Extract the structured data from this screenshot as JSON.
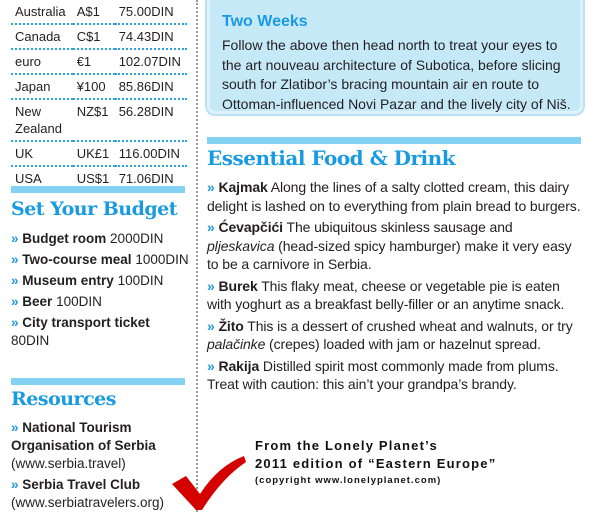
{
  "exchange_rates": [
    {
      "country": "Australia",
      "unit": "A$1",
      "rate": "75.00DIN"
    },
    {
      "country": "Canada",
      "unit": "C$1",
      "rate": "74.43DIN"
    },
    {
      "country": "euro",
      "unit": "€1",
      "rate": "102.07DIN"
    },
    {
      "country": "Japan",
      "unit": "¥100",
      "rate": "85.86DIN"
    },
    {
      "country": "New Zealand",
      "unit": "NZ$1",
      "rate": "56.28DIN"
    },
    {
      "country": "UK",
      "unit": "UK£1",
      "rate": "116.00DIN"
    },
    {
      "country": "USA",
      "unit": "US$1",
      "rate": "71.06DIN"
    }
  ],
  "budget": {
    "title": "Set Your Budget",
    "items": [
      {
        "label": "Budget room",
        "value": "2000DIN"
      },
      {
        "label": "Two-course meal",
        "value": "1000DIN"
      },
      {
        "label": "Museum entry",
        "value": "100DIN"
      },
      {
        "label": "Beer",
        "value": "100DIN"
      },
      {
        "label": "City transport ticket",
        "value": "80DIN"
      }
    ]
  },
  "resources": {
    "title": "Resources",
    "items": [
      {
        "label": "National Tourism Organisation of Serbia",
        "url": "(www.serbia.travel)"
      },
      {
        "label": "Serbia Travel Club",
        "url": "(www.serbiatravelers.org)"
      }
    ]
  },
  "two_weeks": {
    "title": "Two Weeks",
    "body": "Follow the above then head north to treat your eyes to the art nouveau architecture of Subotica, before slicing south for Zlatibor’s bracing mountain air en route to Ottoman-influenced Novi Pazar and the lively city of Niš."
  },
  "food": {
    "title": "Essential Food & Drink",
    "items": [
      {
        "name": "Kajmak",
        "pre": " Along the lines of a salty clotted cream, this dairy delight is lashed on to everything from plain bread to burgers.",
        "italic": "",
        "post": ""
      },
      {
        "name": "Ćevapčići",
        "pre": " The ubiquitous skinless sausage and ",
        "italic": "pljeskavica",
        "post": " (head-sized spicy hamburger) make it very easy to be a carnivore in Serbia."
      },
      {
        "name": "Burek",
        "pre": " This flaky meat, cheese or vegetable pie is eaten with yoghurt as a breakfast belly-filler or an anytime snack.",
        "italic": "",
        "post": ""
      },
      {
        "name": "Žito",
        "pre": " This is a dessert of crushed wheat and walnuts, or try ",
        "italic": "palačinke",
        "post": " (crepes) loaded with jam or hazelnut spread."
      },
      {
        "name": "Rakija",
        "pre": " Distilled spirit most commonly made from plums. Treat with caution: this ain’t your grandpa’s brandy.",
        "italic": "",
        "post": ""
      }
    ]
  },
  "caption": {
    "line1": "From the Lonely Planet’s",
    "line2": "2011 edition of “Eastern Europe”",
    "line3": "(copyright www.lonelyplanet.com)"
  },
  "bullet": "»",
  "colors": {
    "accent": "#1a9ae0",
    "bar": "#84d2f2",
    "box": "#c6e9f8",
    "check": "#d40000"
  }
}
